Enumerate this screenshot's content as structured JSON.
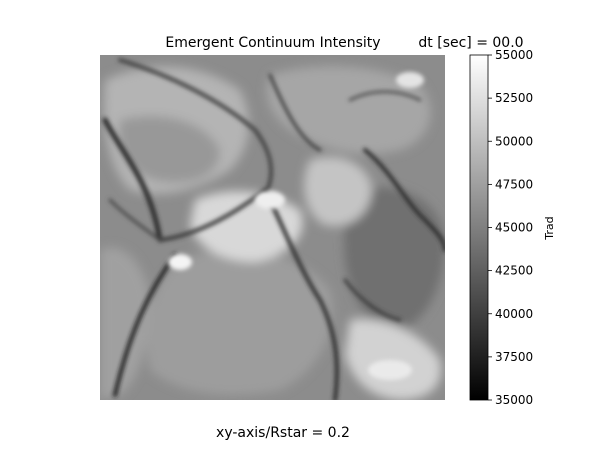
{
  "chart_data": {
    "type": "heatmap",
    "title": "Emergent Continuum Intensity",
    "time_label": "dt [sec] = 00.0",
    "xlabel": "xy-axis/Rstar = 0.2",
    "ylabel": "",
    "colorbar": {
      "label": "Trad",
      "min": 35000,
      "max": 55000,
      "ticks": [
        "55000",
        "52500",
        "50000",
        "47500",
        "45000",
        "42500",
        "40000",
        "37500",
        "35000"
      ],
      "tick_values": [
        55000,
        52500,
        50000,
        47500,
        45000,
        42500,
        40000,
        37500,
        35000
      ],
      "colormap": "gray"
    },
    "grid": false
  }
}
